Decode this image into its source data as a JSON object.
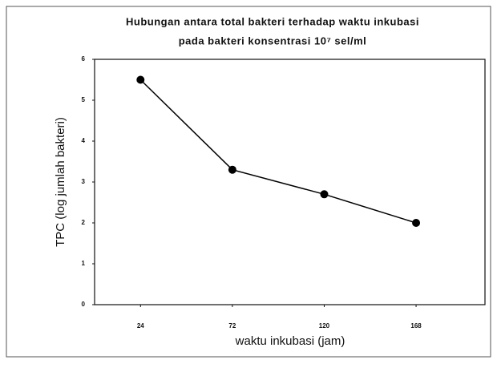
{
  "chart_data": {
    "type": "line",
    "title": "Hubungan antara total bakteri terhadap waktu inkubasi",
    "subtitle": "pada bakteri konsentrasi 10⁷ sel/ml",
    "x_label": "waktu inkubasi (jam)",
    "y_label": "TPC (log jumlah bakteri)",
    "x": [
      24,
      72,
      120,
      168
    ],
    "xticks": [
      24,
      72,
      120,
      168
    ],
    "xlim": [
      0,
      204
    ],
    "series": [
      {
        "color": "#000000",
        "values": [
          5.5,
          3.3,
          2.7,
          2.0
        ]
      }
    ],
    "ylim": [
      0,
      6
    ],
    "yticks": [
      0,
      1,
      2,
      3,
      4,
      5,
      6
    ],
    "grid": false
  }
}
